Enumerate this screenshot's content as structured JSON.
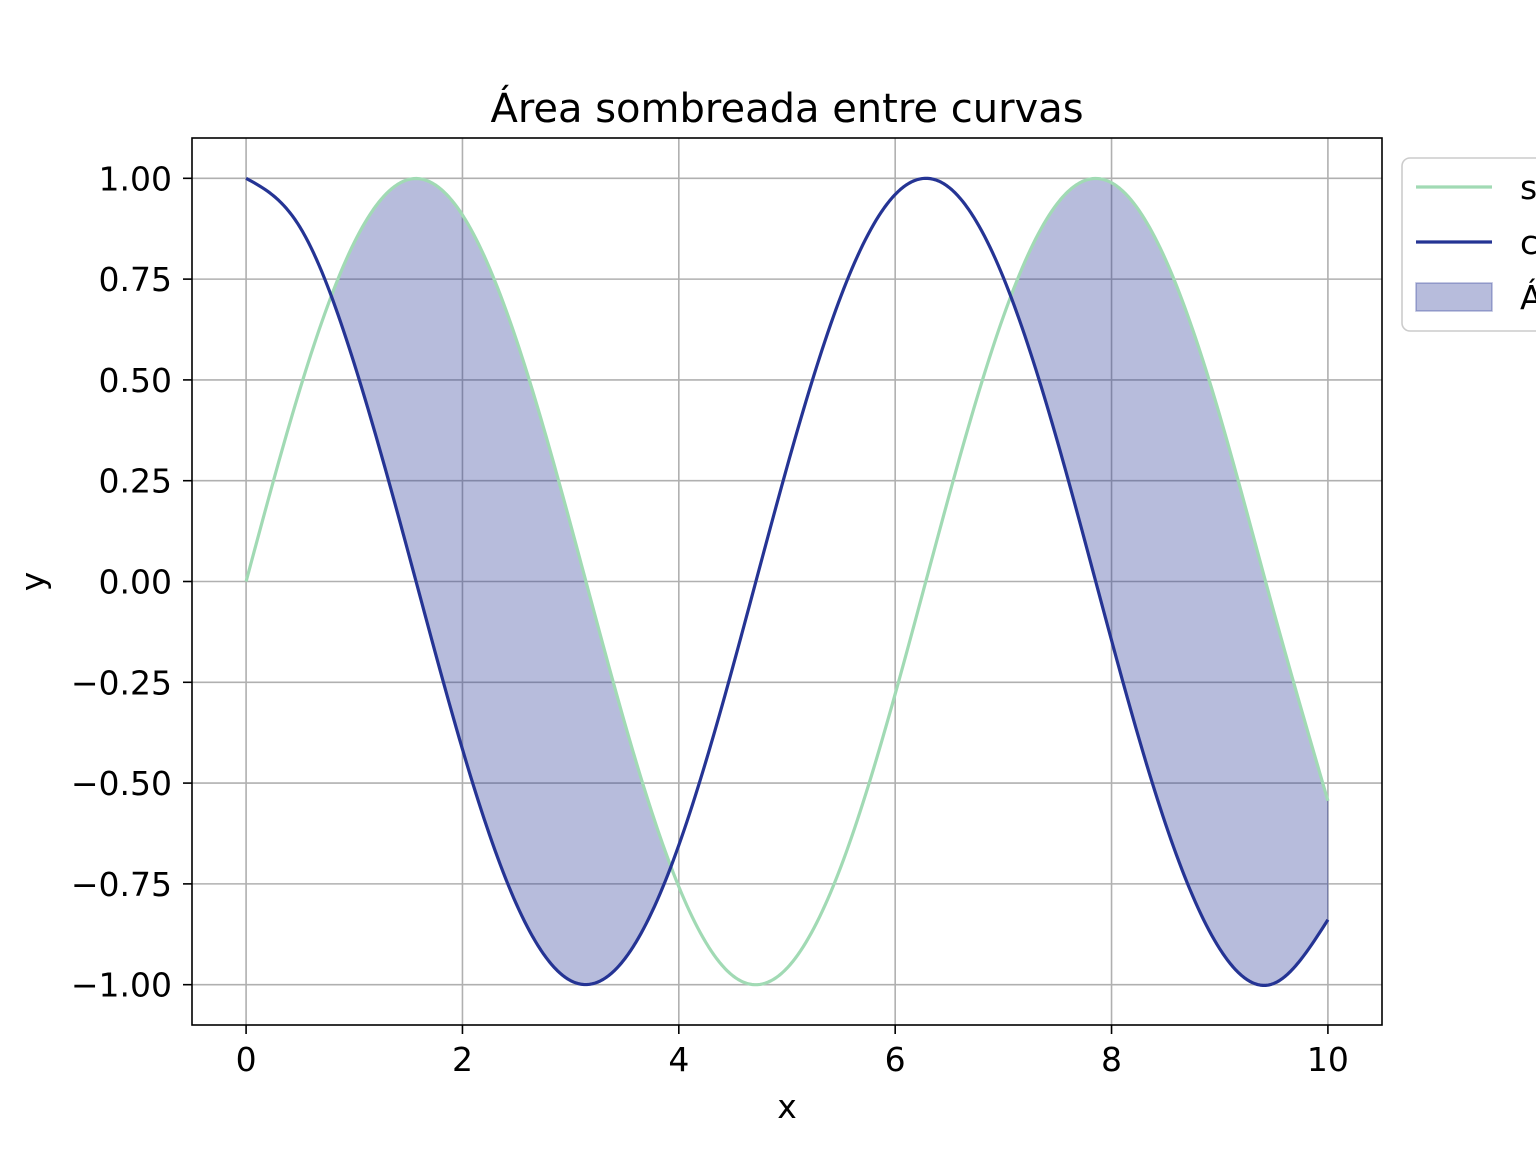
{
  "chart_data": {
    "type": "line",
    "title": "Área sombreada entre curvas",
    "xlabel": "x",
    "ylabel": "y",
    "xlim": [
      -0.5,
      10.5
    ],
    "ylim": [
      -1.1,
      1.1
    ],
    "x_ticks": [
      0,
      2,
      4,
      6,
      8,
      10
    ],
    "x_tick_labels": [
      "0",
      "2",
      "4",
      "6",
      "8",
      "10"
    ],
    "y_ticks": [
      -1.0,
      -0.75,
      -0.5,
      -0.25,
      0.0,
      0.25,
      0.5,
      0.75,
      1.0
    ],
    "y_tick_labels": [
      "−1.00",
      "−0.75",
      "−0.50",
      "−0.25",
      "0.00",
      "0.25",
      "0.50",
      "0.75",
      "1.00"
    ],
    "grid": true,
    "legend_position": "outside top-right",
    "series": [
      {
        "name": "s",
        "kind": "line",
        "color": "#a1dab4",
        "x": [
          0,
          0.5,
          1,
          1.5,
          2,
          2.5,
          3,
          3.5,
          4,
          4.5,
          5,
          5.5,
          6,
          6.5,
          7,
          7.5,
          8,
          8.5,
          9,
          9.5,
          10
        ],
        "y": [
          0.0,
          0.479,
          0.841,
          0.997,
          0.909,
          0.598,
          0.141,
          -0.351,
          -0.757,
          -0.978,
          -0.959,
          -0.706,
          -0.279,
          0.215,
          0.657,
          0.938,
          0.989,
          0.798,
          0.412,
          -0.075,
          -0.544
        ]
      },
      {
        "name": "c",
        "kind": "line",
        "color": "#253494",
        "x": [
          0,
          0.5,
          1,
          1.5,
          2,
          2.5,
          3,
          3.5,
          4,
          4.5,
          5,
          5.5,
          6,
          6.5,
          7,
          7.5,
          8,
          8.5,
          9,
          9.5,
          10
        ],
        "y": [
          1.0,
          0.878,
          0.54,
          0.071,
          -0.416,
          -0.801,
          -0.99,
          -0.936,
          -0.654,
          -0.211,
          0.284,
          0.709,
          0.96,
          0.977,
          0.754,
          0.347,
          -0.146,
          -0.602,
          -0.911,
          -0.997,
          -0.839
        ]
      },
      {
        "name": "Á",
        "kind": "area_between",
        "color": "#253494",
        "fill_alpha": 0.33,
        "where": "s > c"
      }
    ]
  }
}
